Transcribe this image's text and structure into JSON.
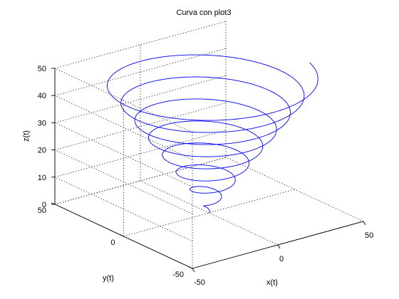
{
  "chart_data": {
    "type": "line3d",
    "title": "Curva con plot3",
    "xlabel": "x(t)",
    "ylabel": "y(t)",
    "zlabel": "z(t)",
    "xlim": [
      -50,
      50
    ],
    "ylim": [
      -50,
      50
    ],
    "zlim": [
      0,
      50
    ],
    "xticks": [
      "-50",
      "0",
      "50"
    ],
    "yticks": [
      "-50",
      "0",
      "50"
    ],
    "zticks": [
      "0",
      "10",
      "20",
      "30",
      "40",
      "50"
    ],
    "grid": true,
    "series": [
      {
        "color": "#0000ff",
        "parametric": {
          "x": "t*cos(t)",
          "y": "t*sin(t)",
          "z": "t"
        },
        "t_range": [
          0,
          50
        ]
      }
    ]
  }
}
